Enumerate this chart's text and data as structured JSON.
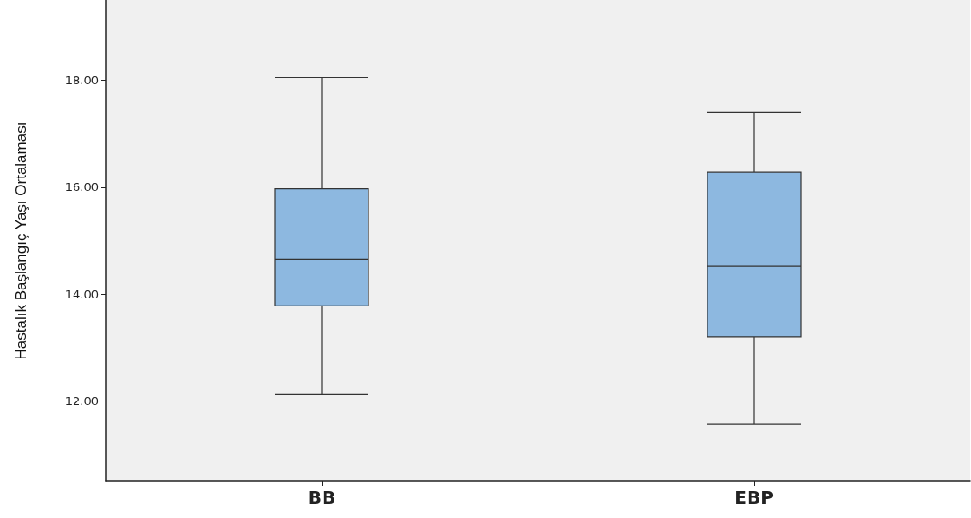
{
  "chart_data": {
    "type": "box",
    "ylabel": "Hastalık Başlangıç Yaşı Ortalaması",
    "categories": [
      "BB",
      "EBP"
    ],
    "boxes": [
      {
        "low": 12.12,
        "q1": 13.78,
        "median": 14.65,
        "q3": 15.97,
        "high": 18.05
      },
      {
        "low": 11.57,
        "q1": 13.2,
        "median": 14.52,
        "q3": 16.28,
        "high": 17.4
      }
    ],
    "color": "#8db8e0",
    "ylim": [
      10.5,
      19.5
    ],
    "yticks": [
      {
        "value": 12,
        "label": "12.00"
      },
      {
        "value": 14,
        "label": "14.00"
      },
      {
        "value": 16,
        "label": "16.00"
      },
      {
        "value": 18,
        "label": "18.00"
      }
    ],
    "grid": false
  }
}
